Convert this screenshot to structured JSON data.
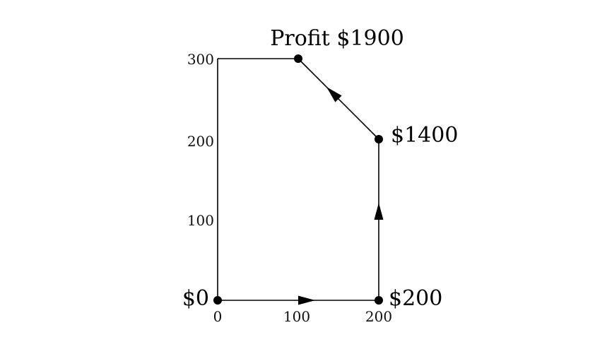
{
  "chart_data": {
    "type": "feasible-region",
    "region": [
      [
        0,
        0
      ],
      [
        200,
        0
      ],
      [
        200,
        200
      ],
      [
        100,
        300
      ],
      [
        0,
        300
      ]
    ],
    "x_ticks": [
      "0",
      "100",
      "200"
    ],
    "y_ticks": [
      "100",
      "200",
      "300"
    ],
    "x_tick_values": [
      0,
      100,
      200
    ],
    "y_tick_values": [
      100,
      200,
      300
    ],
    "xlim": [
      0,
      200
    ],
    "ylim": [
      0,
      300
    ],
    "path": [
      [
        0,
        0
      ],
      [
        200,
        0
      ],
      [
        200,
        200
      ],
      [
        100,
        300
      ]
    ],
    "vertices": [
      {
        "x": 0,
        "y": 0,
        "label": "$0"
      },
      {
        "x": 200,
        "y": 0,
        "label": "$200"
      },
      {
        "x": 200,
        "y": 200,
        "label": "$1400"
      },
      {
        "x": 100,
        "y": 300,
        "label": "Profit $1900"
      }
    ]
  }
}
